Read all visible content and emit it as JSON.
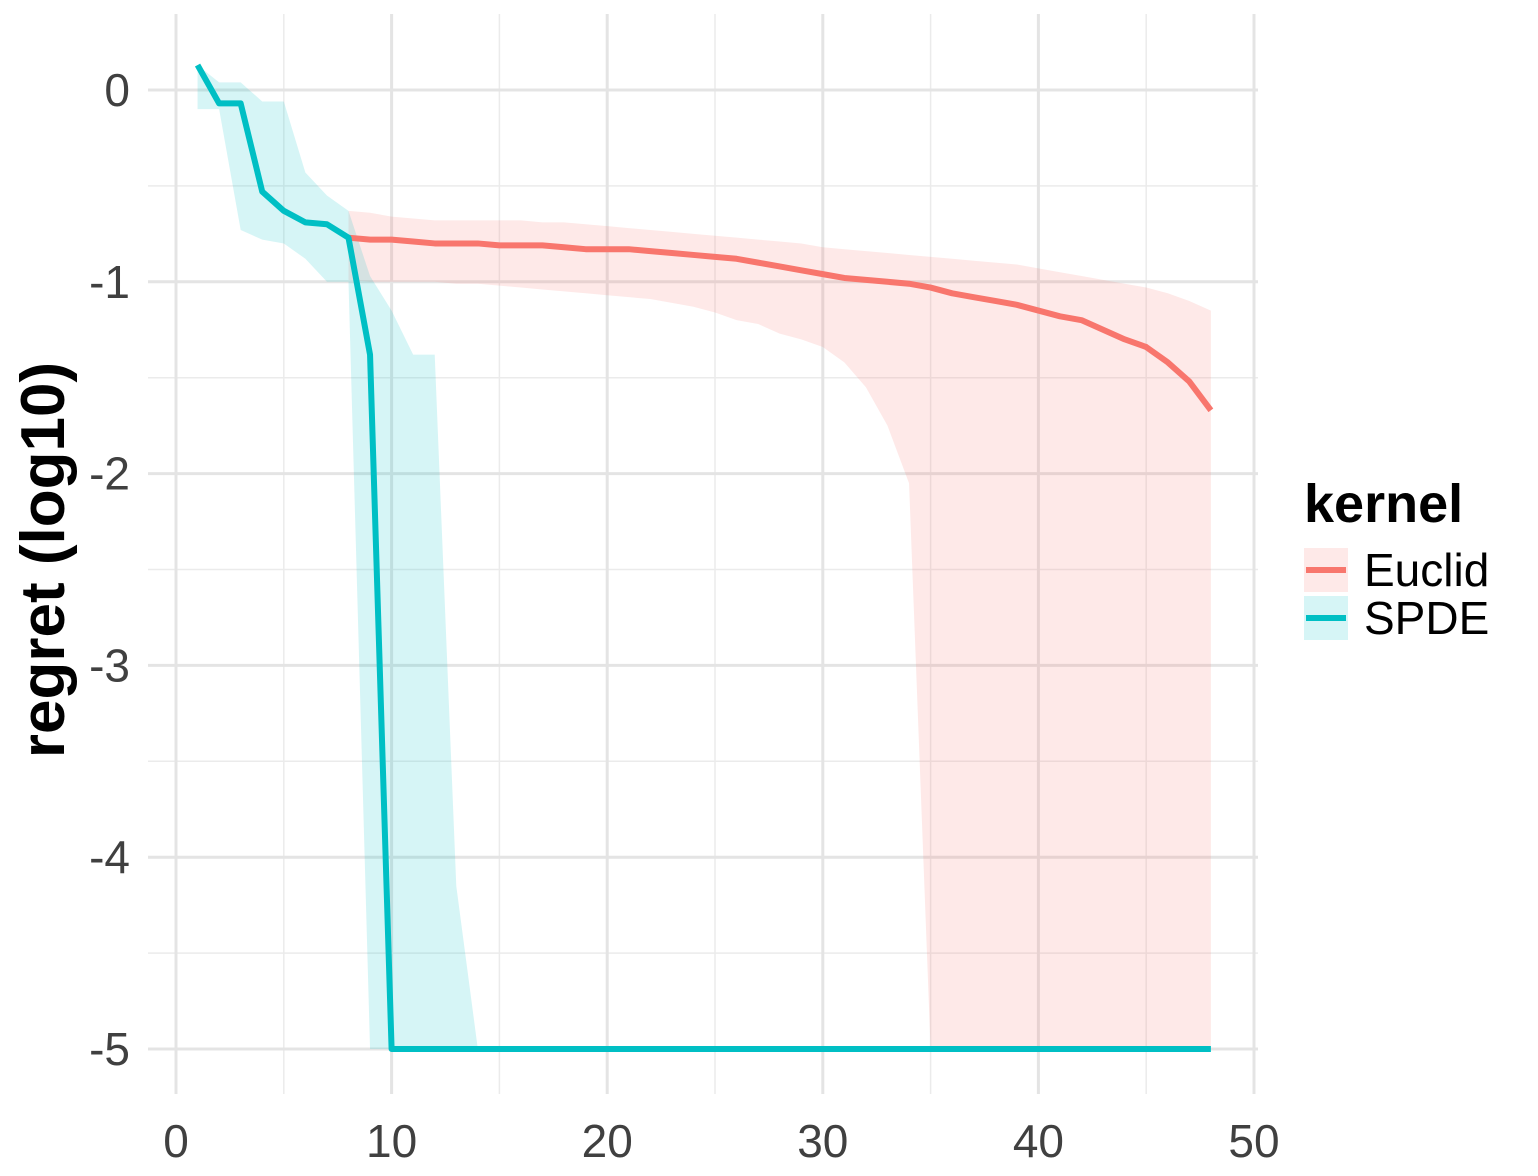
{
  "chart_data": {
    "type": "line",
    "title": "",
    "xlabel": "",
    "ylabel": "regret (log10)",
    "xlim": [
      0,
      50
    ],
    "ylim": [
      -5,
      0
    ],
    "xticks": [
      "0",
      "10",
      "20",
      "30",
      "40",
      "50"
    ],
    "yticks": [
      "0",
      "-1",
      "-2",
      "-3",
      "-4",
      "-5"
    ],
    "grid": true,
    "legend": {
      "title": "kernel",
      "position": "right"
    },
    "series": [
      {
        "name": "Euclid",
        "color": "#F8766D",
        "x": [
          8,
          9,
          10,
          11,
          12,
          13,
          14,
          15,
          16,
          17,
          18,
          19,
          20,
          21,
          22,
          23,
          24,
          25,
          26,
          27,
          28,
          29,
          30,
          31,
          32,
          33,
          34,
          35,
          36,
          37,
          38,
          39,
          40,
          41,
          42,
          43,
          44,
          45,
          46,
          47,
          48
        ],
        "y": [
          -0.77,
          -0.78,
          -0.78,
          -0.79,
          -0.8,
          -0.8,
          -0.8,
          -0.81,
          -0.81,
          -0.81,
          -0.82,
          -0.83,
          -0.83,
          -0.83,
          -0.84,
          -0.85,
          -0.86,
          -0.87,
          -0.88,
          -0.9,
          -0.92,
          -0.94,
          -0.96,
          -0.98,
          -0.99,
          -1.0,
          -1.01,
          -1.03,
          -1.06,
          -1.08,
          -1.1,
          -1.12,
          -1.15,
          -1.18,
          -1.2,
          -1.25,
          -1.3,
          -1.34,
          -1.42,
          -1.52,
          -1.67
        ],
        "lower": [
          -0.99,
          -1.0,
          -1.0,
          -1.0,
          -1.0,
          -1.01,
          -1.01,
          -1.02,
          -1.03,
          -1.04,
          -1.05,
          -1.06,
          -1.07,
          -1.08,
          -1.09,
          -1.11,
          -1.13,
          -1.16,
          -1.2,
          -1.22,
          -1.27,
          -1.3,
          -1.34,
          -1.42,
          -1.55,
          -1.75,
          -2.05,
          -5.0,
          -5.0,
          -5.0,
          -5.0,
          -5.0,
          -5.0,
          -5.0,
          -5.0,
          -5.0,
          -5.0,
          -5.0,
          -5.0,
          -5.0,
          -5.0
        ],
        "upper": [
          -0.63,
          -0.64,
          -0.66,
          -0.67,
          -0.68,
          -0.68,
          -0.68,
          -0.68,
          -0.68,
          -0.69,
          -0.69,
          -0.7,
          -0.71,
          -0.72,
          -0.73,
          -0.74,
          -0.75,
          -0.76,
          -0.77,
          -0.78,
          -0.79,
          -0.8,
          -0.82,
          -0.83,
          -0.84,
          -0.85,
          -0.86,
          -0.87,
          -0.88,
          -0.89,
          -0.9,
          -0.91,
          -0.93,
          -0.95,
          -0.97,
          -0.99,
          -1.01,
          -1.03,
          -1.06,
          -1.1,
          -1.15
        ]
      },
      {
        "name": "SPDE",
        "color": "#00BFC4",
        "x": [
          1,
          2,
          3,
          4,
          5,
          6,
          7,
          8,
          9,
          10,
          11,
          12,
          13,
          14,
          15,
          16,
          17,
          18,
          19,
          20,
          21,
          22,
          23,
          24,
          25,
          26,
          27,
          28,
          29,
          30,
          31,
          32,
          33,
          34,
          35,
          36,
          37,
          38,
          39,
          40,
          41,
          42,
          43,
          44,
          45,
          46,
          47,
          48
        ],
        "y": [
          0.13,
          -0.07,
          -0.07,
          -0.53,
          -0.63,
          -0.69,
          -0.7,
          -0.77,
          -1.38,
          -5.0,
          -5.0,
          -5.0,
          -5.0,
          -5.0,
          -5.0,
          -5.0,
          -5.0,
          -5.0,
          -5.0,
          -5.0,
          -5.0,
          -5.0,
          -5.0,
          -5.0,
          -5.0,
          -5.0,
          -5.0,
          -5.0,
          -5.0,
          -5.0,
          -5.0,
          -5.0,
          -5.0,
          -5.0,
          -5.0,
          -5.0,
          -5.0,
          -5.0,
          -5.0,
          -5.0,
          -5.0,
          -5.0,
          -5.0,
          -5.0,
          -5.0,
          -5.0,
          -5.0,
          -5.0
        ],
        "lower": [
          -0.1,
          -0.1,
          -0.73,
          -0.78,
          -0.8,
          -0.88,
          -1.0,
          -1.0,
          -5.0,
          -5.0,
          -5.0,
          -5.0,
          -5.0,
          -5.0,
          -5.0,
          -5.0,
          -5.0,
          -5.0,
          -5.0,
          -5.0,
          -5.0,
          -5.0,
          -5.0,
          -5.0,
          -5.0,
          -5.0,
          -5.0,
          -5.0,
          -5.0,
          -5.0,
          -5.0,
          -5.0,
          -5.0,
          -5.0,
          -5.0,
          -5.0,
          -5.0,
          -5.0,
          -5.0,
          -5.0,
          -5.0,
          -5.0,
          -5.0,
          -5.0,
          -5.0,
          -5.0,
          -5.0,
          -5.0
        ],
        "upper": [
          0.13,
          0.04,
          0.04,
          -0.06,
          -0.06,
          -0.43,
          -0.55,
          -0.63,
          -0.97,
          -1.15,
          -1.38,
          -1.38,
          -4.15,
          -5.0,
          -5.0,
          -5.0,
          -5.0,
          -5.0,
          -5.0,
          -5.0,
          -5.0,
          -5.0,
          -5.0,
          -5.0,
          -5.0,
          -5.0,
          -5.0,
          -5.0,
          -5.0,
          -5.0,
          -5.0,
          -5.0,
          -5.0,
          -5.0,
          -5.0,
          -5.0,
          -5.0,
          -5.0,
          -5.0,
          -5.0,
          -5.0,
          -5.0,
          -5.0,
          -5.0,
          -5.0,
          -5.0,
          -5.0,
          -5.0
        ]
      }
    ]
  }
}
